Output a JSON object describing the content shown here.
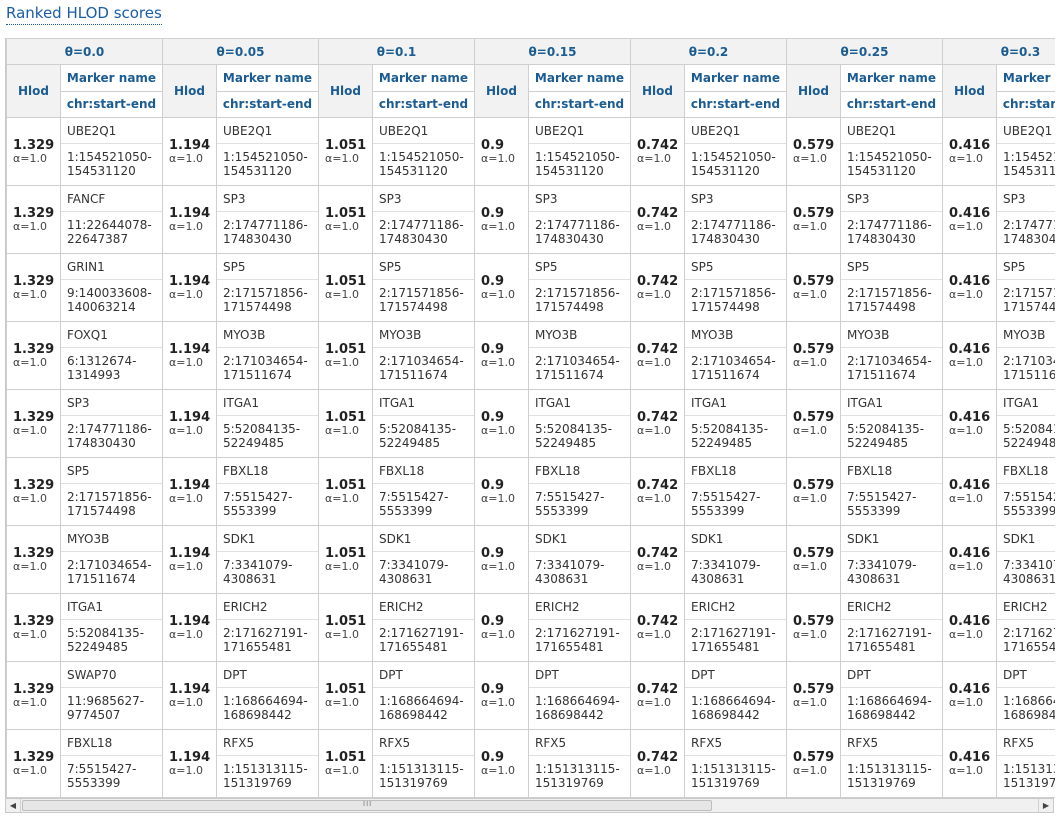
{
  "page_title": "Ranked HLOD scores",
  "headers": {
    "hlod": "Hlod",
    "marker_name": "Marker name",
    "chr_range": "chr:start-end"
  },
  "thetas": [
    "θ=0.0",
    "θ=0.05",
    "θ=0.1",
    "θ=0.15",
    "θ=0.2",
    "θ=0.25",
    "θ=0.3"
  ],
  "alpha_text": "α=1.0",
  "hlod_values": [
    "1.329",
    "1.194",
    "1.051",
    "0.9",
    "0.742",
    "0.579",
    "0.416"
  ],
  "col0_markers": [
    {
      "gene": "UBE2Q1",
      "loc": "1:154521050-154531120"
    },
    {
      "gene": "FANCF",
      "loc": "11:22644078-22647387"
    },
    {
      "gene": "GRIN1",
      "loc": "9:140033608-140063214"
    },
    {
      "gene": "FOXQ1",
      "loc": "6:1312674-1314993"
    },
    {
      "gene": "SP3",
      "loc": "2:174771186-174830430"
    },
    {
      "gene": "SP5",
      "loc": "2:171571856-171574498"
    },
    {
      "gene": "MYO3B",
      "loc": "2:171034654-171511674"
    },
    {
      "gene": "ITGA1",
      "loc": "5:52084135-52249485"
    },
    {
      "gene": "SWAP70",
      "loc": "11:9685627-9774507"
    },
    {
      "gene": "FBXL18",
      "loc": "7:5515427-5553399"
    }
  ],
  "other_markers": [
    {
      "gene": "UBE2Q1",
      "loc": "1:154521050-154531120"
    },
    {
      "gene": "SP3",
      "loc": "2:174771186-174830430"
    },
    {
      "gene": "SP5",
      "loc": "2:171571856-171574498"
    },
    {
      "gene": "MYO3B",
      "loc": "2:171034654-171511674"
    },
    {
      "gene": "ITGA1",
      "loc": "5:52084135-52249485"
    },
    {
      "gene": "FBXL18",
      "loc": "7:5515427-5553399"
    },
    {
      "gene": "SDK1",
      "loc": "7:3341079-4308631"
    },
    {
      "gene": "ERICH2",
      "loc": "2:171627191-171655481"
    },
    {
      "gene": "DPT",
      "loc": "1:168664694-168698442"
    },
    {
      "gene": "RFX5",
      "loc": "1:151313115-151319769"
    }
  ],
  "scrollbar": {
    "left_arrow": "◀",
    "right_arrow": "▶",
    "grip": "III",
    "position_fraction": 0
  }
}
